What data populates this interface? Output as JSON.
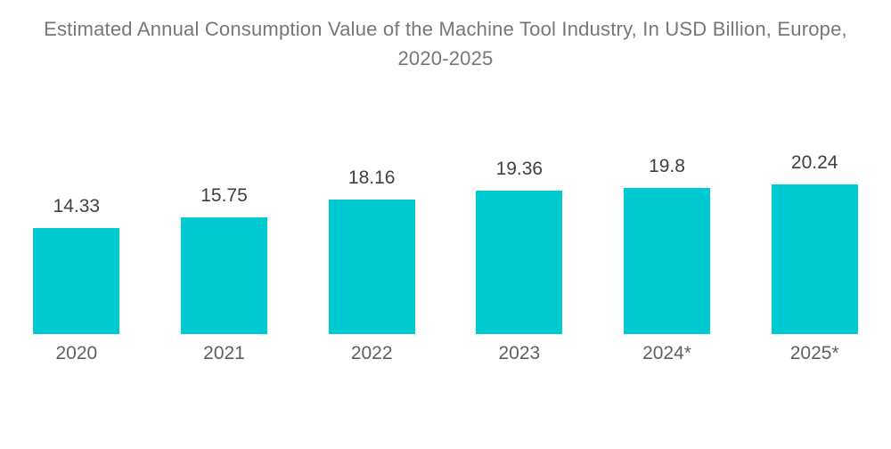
{
  "title": "Estimated Annual Consumption Value of the Machine Tool Industry, In USD Billion, Europe, 2020-2025",
  "colors": {
    "background": "#ffffff",
    "bar": "#00cad1",
    "title_text": "#74787b",
    "value_text": "#3d4144",
    "year_text": "#5d6164"
  },
  "chart_data": {
    "type": "bar",
    "title": "Estimated Annual Consumption Value of the Machine Tool Industry, In USD Billion, Europe, 2020-2025",
    "categories": [
      "2020",
      "2021",
      "2022",
      "2023",
      "2024*",
      "2025*"
    ],
    "values": [
      14.33,
      15.75,
      18.16,
      19.36,
      19.8,
      20.24
    ],
    "value_labels": [
      "14.33",
      "15.75",
      "18.16",
      "19.36",
      "19.8",
      "20.24"
    ],
    "xlabel": "",
    "ylabel": "",
    "ylim": [
      0,
      22
    ],
    "grid": false,
    "legend": false,
    "bar_color": "#00cad1"
  }
}
